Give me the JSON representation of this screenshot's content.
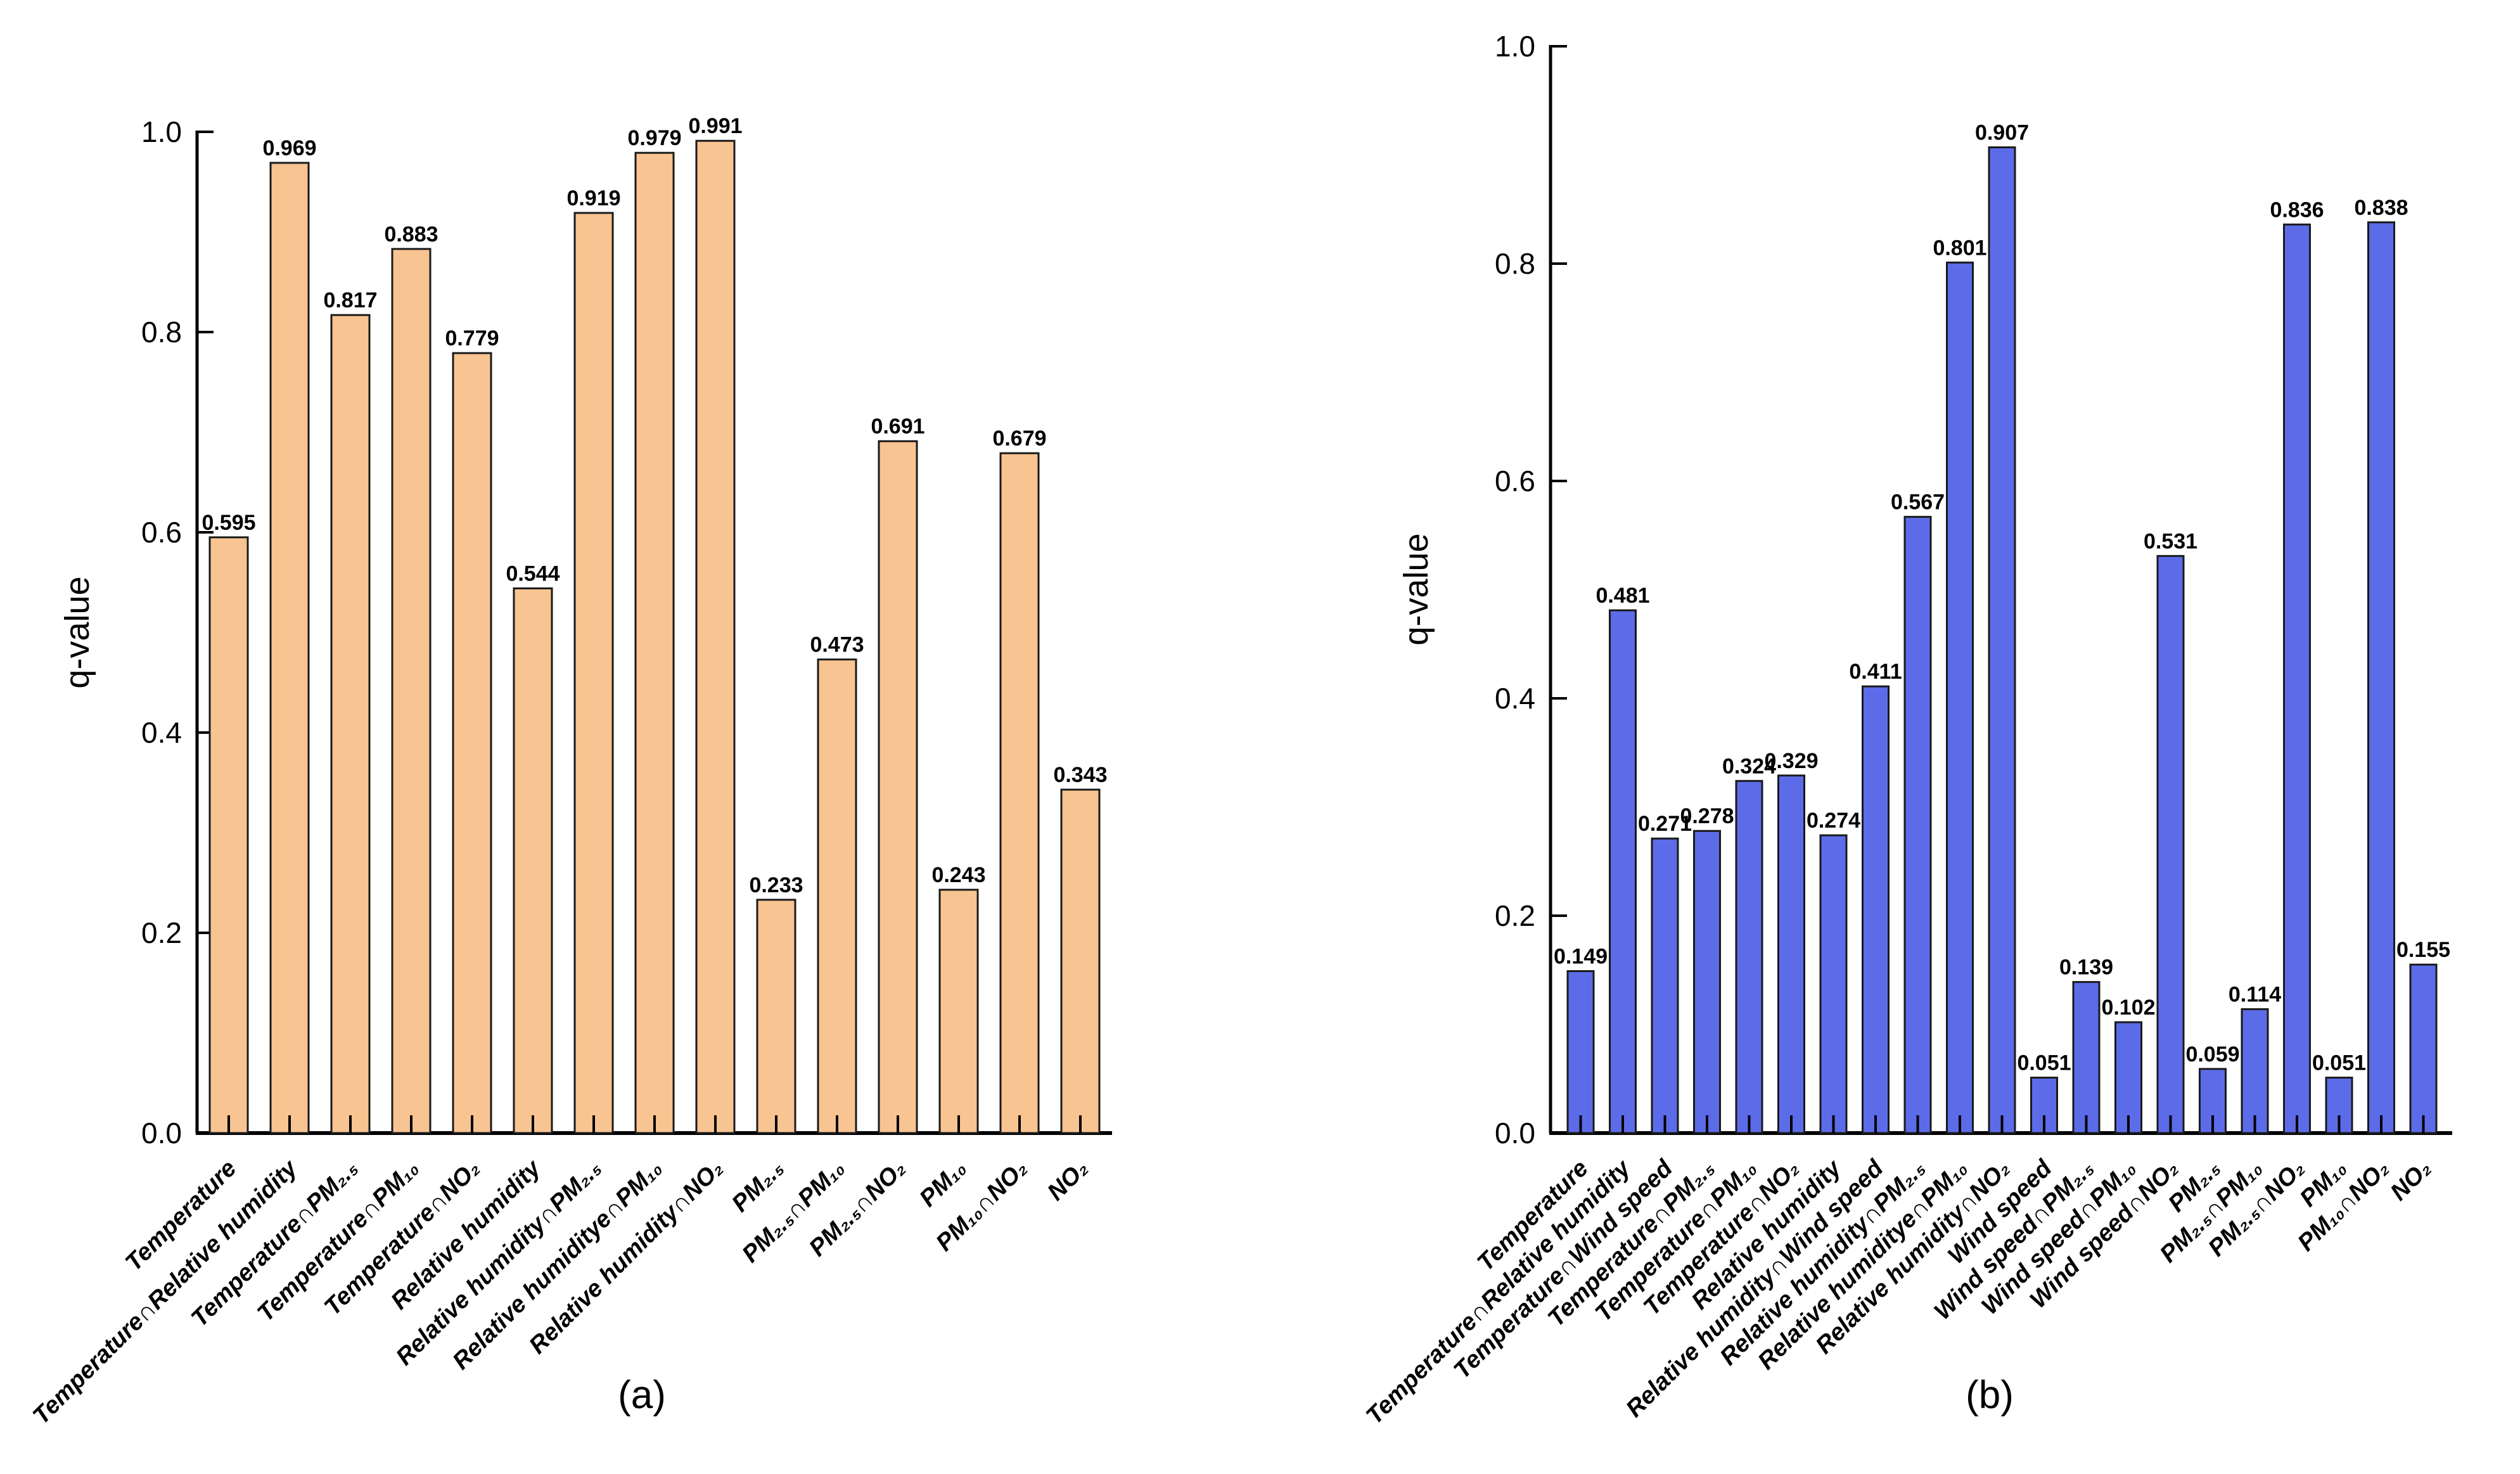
{
  "figure": {
    "background_color": "#ffffff",
    "axis_color": "#000000"
  },
  "chart_data": [
    {
      "id": "a",
      "type": "bar",
      "title": "",
      "xlabel": "",
      "ylabel": "q-value",
      "caption": "(a)",
      "ylim": [
        0.0,
        1.0
      ],
      "yticks": [
        "0.0",
        "0.2",
        "0.4",
        "0.6",
        "0.8",
        "1.0"
      ],
      "grid": false,
      "legend": "none",
      "bar_color": "#F8C491",
      "bar_edge_color": "#1a1a1a",
      "categories": [
        "Temperature",
        "Temperature∩Relative humidity",
        "Temperature∩PM₂.₅",
        "Temperature∩PM₁₀",
        "Temperature∩NO₂",
        "Relative humidity",
        "Relative humidity∩PM₂.₅",
        "Relative humiditye∩PM₁₀",
        "Relative humidity∩NO₂",
        "PM₂.₅",
        "PM₂.₅∩PM₁₀",
        "PM₂.₅∩NO₂",
        "PM₁₀",
        "PM₁₀∩NO₂",
        "NO₂"
      ],
      "values": [
        0.595,
        0.969,
        0.817,
        0.883,
        0.779,
        0.544,
        0.919,
        0.979,
        0.991,
        0.233,
        0.473,
        0.691,
        0.243,
        0.679,
        0.343
      ]
    },
    {
      "id": "b",
      "type": "bar",
      "title": "",
      "xlabel": "",
      "ylabel": "q-value",
      "caption": "(b)",
      "ylim": [
        0.0,
        1.0
      ],
      "yticks": [
        "0.0",
        "0.2",
        "0.4",
        "0.6",
        "0.8",
        "1.0"
      ],
      "grid": false,
      "legend": "none",
      "bar_color": "#5C6CE8",
      "bar_edge_color": "#1a1a1a",
      "categories": [
        "Temperature",
        "Temperature∩Relative humidity",
        "Temperature∩Wind speed",
        "Temperature∩PM₂.₅",
        "Temperature∩PM₁₀",
        "Temperature∩NO₂",
        "Relative humidity",
        "Relative humidity∩Wind speed",
        "Relative humidity∩PM₂.₅",
        "Relative humiditye∩PM₁₀",
        "Relative humidity∩NO₂",
        "Wind speed",
        "Wind speed∩PM₂.₅",
        "Wind speed∩PM₁₀",
        "Wind speed∩NO₂",
        "PM₂.₅",
        "PM₂.₅∩PM₁₀",
        "PM₂.₅∩NO₂",
        "PM₁₀",
        "PM₁₀∩NO₂",
        "NO₂"
      ],
      "values": [
        0.149,
        0.481,
        0.271,
        0.278,
        0.324,
        0.329,
        0.274,
        0.411,
        0.567,
        0.801,
        0.907,
        0.051,
        0.139,
        0.102,
        0.531,
        0.059,
        0.114,
        0.836,
        0.051,
        0.838,
        0.155
      ]
    }
  ]
}
